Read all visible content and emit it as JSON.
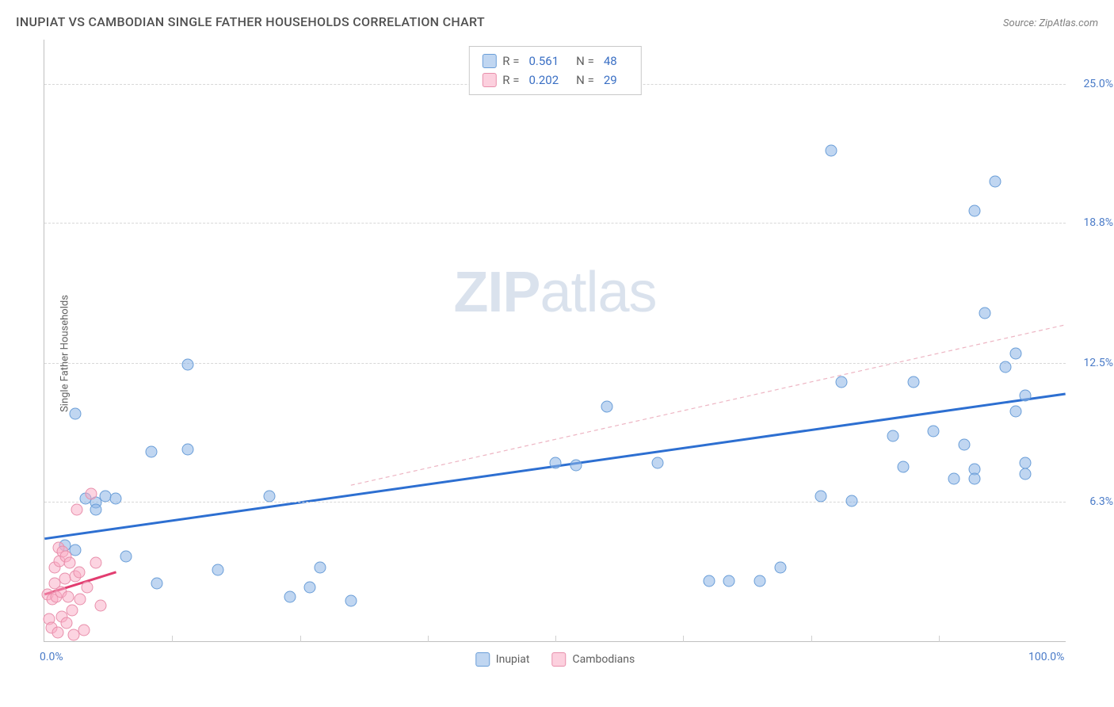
{
  "header": {
    "title": "INUPIAT VS CAMBODIAN SINGLE FATHER HOUSEHOLDS CORRELATION CHART",
    "source_prefix": "Source: ",
    "source_name": "ZipAtlas.com"
  },
  "y_axis_label": "Single Father Households",
  "watermark": {
    "bold": "ZIP",
    "light": "atlas"
  },
  "chart": {
    "type": "scatter",
    "background": "#ffffff",
    "grid_color": "#d8d8d8",
    "xlim": [
      0,
      100
    ],
    "ylim": [
      0,
      27
    ],
    "x_ticks": [
      0,
      100
    ],
    "x_tick_labels": [
      "0.0%",
      "100.0%"
    ],
    "x_minor_ticks": [
      12.5,
      25,
      37.5,
      50,
      62.5,
      75,
      87.5
    ],
    "y_ticks": [
      6.3,
      12.5,
      18.8,
      25.0
    ],
    "y_tick_labels": [
      "6.3%",
      "12.5%",
      "18.8%",
      "25.0%"
    ],
    "series": [
      {
        "name": "Inupiat",
        "fill": "rgba(140,180,230,0.55)",
        "stroke": "#6a9ed8",
        "marker_size": 15,
        "trend": {
          "x1": 0,
          "y1": 4.6,
          "x2": 100,
          "y2": 11.1,
          "color": "#2d6fd1",
          "width": 3,
          "dash": "none"
        },
        "trend_ext": {
          "x1": 30,
          "y1": 7.0,
          "x2": 100,
          "y2": 14.2,
          "color": "rgba(230,150,170,0.7)",
          "width": 1.2,
          "dash": "5,4"
        },
        "R": "0.561",
        "N": "48",
        "points": [
          [
            3,
            10.2
          ],
          [
            2,
            4.3
          ],
          [
            3,
            4.1
          ],
          [
            4,
            6.4
          ],
          [
            5,
            6.2
          ],
          [
            5,
            5.9
          ],
          [
            6,
            6.5
          ],
          [
            7,
            6.4
          ],
          [
            8,
            3.8
          ],
          [
            10.5,
            8.5
          ],
          [
            11,
            2.6
          ],
          [
            14,
            12.4
          ],
          [
            14,
            8.6
          ],
          [
            17,
            3.2
          ],
          [
            22,
            6.5
          ],
          [
            24,
            2.0
          ],
          [
            26,
            2.4
          ],
          [
            27,
            3.3
          ],
          [
            30,
            1.8
          ],
          [
            55,
            10.5
          ],
          [
            50,
            8.0
          ],
          [
            52,
            7.9
          ],
          [
            60,
            8.0
          ],
          [
            65,
            2.7
          ],
          [
            67,
            2.7
          ],
          [
            70,
            2.7
          ],
          [
            72,
            3.3
          ],
          [
            76,
            6.5
          ],
          [
            77,
            22.0
          ],
          [
            78,
            11.6
          ],
          [
            79,
            6.3
          ],
          [
            83,
            9.2
          ],
          [
            84,
            7.8
          ],
          [
            85,
            11.6
          ],
          [
            87,
            9.4
          ],
          [
            89,
            7.3
          ],
          [
            90,
            8.8
          ],
          [
            91,
            7.7
          ],
          [
            91,
            7.3
          ],
          [
            91,
            19.3
          ],
          [
            92,
            14.7
          ],
          [
            93,
            20.6
          ],
          [
            94,
            12.3
          ],
          [
            95,
            12.9
          ],
          [
            95,
            10.3
          ],
          [
            96,
            8.0
          ],
          [
            96,
            11.0
          ],
          [
            96,
            7.5
          ]
        ]
      },
      {
        "name": "Cambodians",
        "fill": "rgba(250,170,195,0.5)",
        "stroke": "#e88fab",
        "marker_size": 15,
        "trend": {
          "x1": 0,
          "y1": 2.1,
          "x2": 7,
          "y2": 3.1,
          "color": "#e23d70",
          "width": 3,
          "dash": "none"
        },
        "R": "0.202",
        "N": "29",
        "points": [
          [
            0.3,
            2.1
          ],
          [
            0.5,
            1.0
          ],
          [
            0.7,
            0.6
          ],
          [
            0.8,
            1.9
          ],
          [
            1.0,
            2.6
          ],
          [
            1.0,
            3.3
          ],
          [
            1.2,
            2.0
          ],
          [
            1.3,
            0.4
          ],
          [
            1.4,
            4.2
          ],
          [
            1.5,
            3.6
          ],
          [
            1.6,
            2.2
          ],
          [
            1.7,
            1.1
          ],
          [
            1.8,
            4.0
          ],
          [
            2.0,
            2.8
          ],
          [
            2.1,
            3.8
          ],
          [
            2.2,
            0.8
          ],
          [
            2.3,
            2.0
          ],
          [
            2.5,
            3.5
          ],
          [
            2.7,
            1.4
          ],
          [
            2.9,
            0.3
          ],
          [
            3.0,
            2.9
          ],
          [
            3.2,
            5.9
          ],
          [
            3.4,
            3.1
          ],
          [
            3.5,
            1.9
          ],
          [
            3.9,
            0.5
          ],
          [
            4.2,
            2.4
          ],
          [
            4.6,
            6.6
          ],
          [
            5.0,
            3.5
          ],
          [
            5.5,
            1.6
          ]
        ]
      }
    ]
  },
  "legend_top": {
    "rows": [
      {
        "swatch_fill": "rgba(140,180,230,0.55)",
        "swatch_stroke": "#6a9ed8",
        "r": "0.561",
        "n": "48"
      },
      {
        "swatch_fill": "rgba(250,170,195,0.55)",
        "swatch_stroke": "#e88fab",
        "r": "0.202",
        "n": "29"
      }
    ],
    "r_label": "R =",
    "n_label": "N ="
  },
  "legend_bottom": {
    "items": [
      {
        "label": "Inupiat",
        "fill": "rgba(140,180,230,0.55)",
        "stroke": "#6a9ed8"
      },
      {
        "label": "Cambodians",
        "fill": "rgba(250,170,195,0.55)",
        "stroke": "#e88fab"
      }
    ]
  }
}
